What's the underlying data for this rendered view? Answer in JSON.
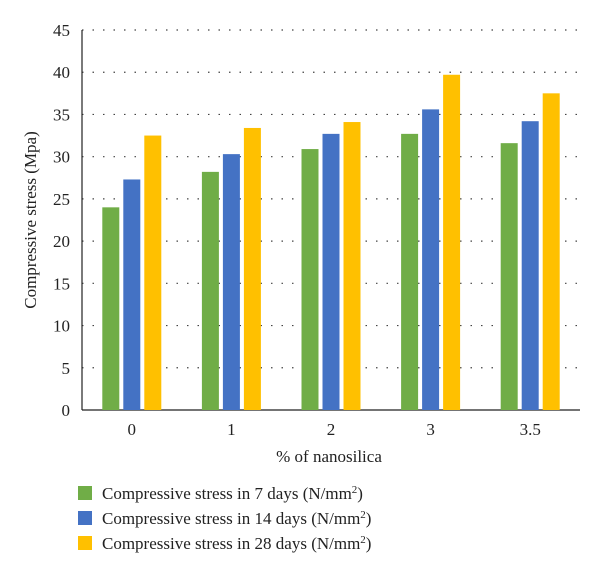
{
  "chart_data": {
    "type": "bar",
    "title": "",
    "xlabel": "% of nanosilica",
    "ylabel": "Compressive stress (Mpa)",
    "categories": [
      "0",
      "1",
      "2",
      "3",
      "3.5"
    ],
    "ylim": [
      0,
      45
    ],
    "yticks": [
      0,
      5,
      10,
      15,
      20,
      25,
      30,
      35,
      40,
      45
    ],
    "grid": "horizontal-dotted",
    "legend_position": "bottom",
    "series": [
      {
        "name": "Compressive stress in 7 days",
        "unit": "(N/mm",
        "unit_sup": "2",
        "unit_close": ")",
        "color": "#70ad47",
        "values": [
          24.0,
          28.2,
          30.9,
          32.7,
          31.6
        ]
      },
      {
        "name": "Compressive stress in 14 days",
        "unit": "(N/mm",
        "unit_sup": "2",
        "unit_close": ")",
        "color": "#4472c4",
        "values": [
          27.3,
          30.3,
          32.7,
          35.6,
          34.2
        ]
      },
      {
        "name": "Compressive stress in 28 days",
        "unit": "(N/mm",
        "unit_sup": "2",
        "unit_close": ")",
        "color": "#ffc000",
        "values": [
          32.5,
          33.4,
          34.1,
          39.7,
          37.5
        ]
      }
    ]
  }
}
